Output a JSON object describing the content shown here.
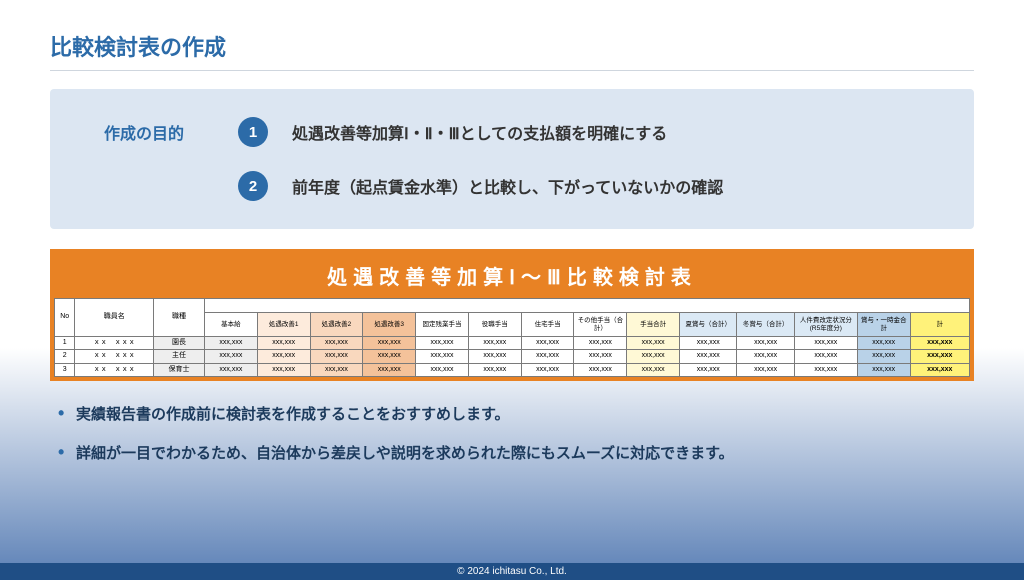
{
  "title": "比較検討表の作成",
  "purpose": {
    "label": "作成の目的",
    "items": [
      {
        "num": "1",
        "text": "処遇改善等加算Ⅰ・Ⅱ・Ⅲとしての支払額を明確にする"
      },
      {
        "num": "2",
        "text": "前年度（起点賃金水準）と比較し、下がっていないかの確認"
      }
    ]
  },
  "table": {
    "title": "処遇改善等加算Ⅰ～Ⅲ比較検討表",
    "col_widths_pct": [
      2.2,
      8.5,
      5.5,
      5.7,
      5.7,
      5.7,
      5.7,
      5.7,
      5.7,
      5.7,
      5.7,
      5.7,
      6.2,
      6.2,
      6.8,
      5.7,
      6.4
    ],
    "header_top": {
      "no": "No",
      "name": "職員名",
      "type": "職種"
    },
    "headers": [
      "基本給",
      "処遇改善1",
      "処遇改善2",
      "処遇改善3",
      "固定残業手当",
      "役職手当",
      "住宅手当",
      "その他手当（合計）",
      "手当合計",
      "夏賞与（合計）",
      "冬賞与（合計）",
      "人件費改定状況分(R5年度分)",
      "賞与・一時金合計",
      "計"
    ],
    "header_colors": [
      "#ffffff",
      "#fdebdc",
      "#f9d8be",
      "#f4c29a",
      "#ffffff",
      "#ffffff",
      "#ffffff",
      "#ffffff",
      "#fff9d6",
      "#dbe9f5",
      "#dbe9f5",
      "#dbe9f5",
      "#b9d2e8",
      "#fff27a"
    ],
    "cell_colors": [
      "#eeeeee",
      "#fdebdc",
      "#f9d8be",
      "#f4c29a",
      "#ffffff",
      "#ffffff",
      "#ffffff",
      "#ffffff",
      "#fff9d6",
      "#ffffff",
      "#ffffff",
      "#ffffff",
      "#b9d2e8",
      "#fff27a"
    ],
    "rows": [
      {
        "no": "1",
        "name": "ｘｘ　ｘｘｘ",
        "type": "園長"
      },
      {
        "no": "2",
        "name": "ｘｘ　ｘｘｘ",
        "type": "主任"
      },
      {
        "no": "3",
        "name": "ｘｘ　ｘｘｘ",
        "type": "保育士"
      }
    ],
    "cell_value": "xxx,xxx",
    "cell_value_bold": "xxx,xxx"
  },
  "bullets": [
    "実績報告書の作成前に検討表を作成することをおすすめします。",
    "詳細が一目でわかるため、自治体から差戻しや説明を求められた際にもスムーズに対応できます。"
  ],
  "footer": "© 2024 ichitasu Co., Ltd.",
  "colors": {
    "accent": "#2c6ba8",
    "orange": "#e88224",
    "purpose_bg": "#dce6f2"
  }
}
